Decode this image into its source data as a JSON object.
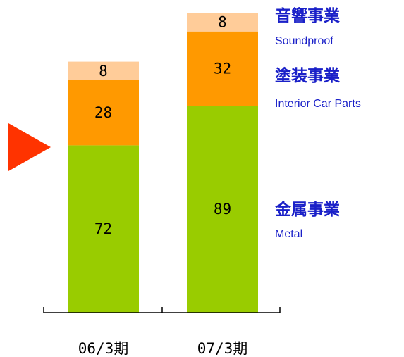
{
  "chart_data": {
    "type": "bar",
    "stacked": true,
    "categories": [
      "06/3期",
      "07/3期"
    ],
    "series": [
      {
        "name": "金属事業",
        "name_en": "Metal",
        "values": [
          72,
          89
        ],
        "color": "#99cc00"
      },
      {
        "name": "塗装事業",
        "name_en": "Interior Car Parts",
        "values": [
          28,
          32
        ],
        "color": "#ff9900"
      },
      {
        "name": "音響事業",
        "name_en": "Soundproof",
        "values": [
          8,
          8
        ],
        "color": "#ffcc99"
      }
    ],
    "title": "",
    "xlabel": "",
    "ylabel": "",
    "ylim": [
      0,
      136
    ],
    "grid": false,
    "legend_placement": "right",
    "marker": {
      "shape": "triangle-right",
      "color": "#ff3300"
    }
  }
}
